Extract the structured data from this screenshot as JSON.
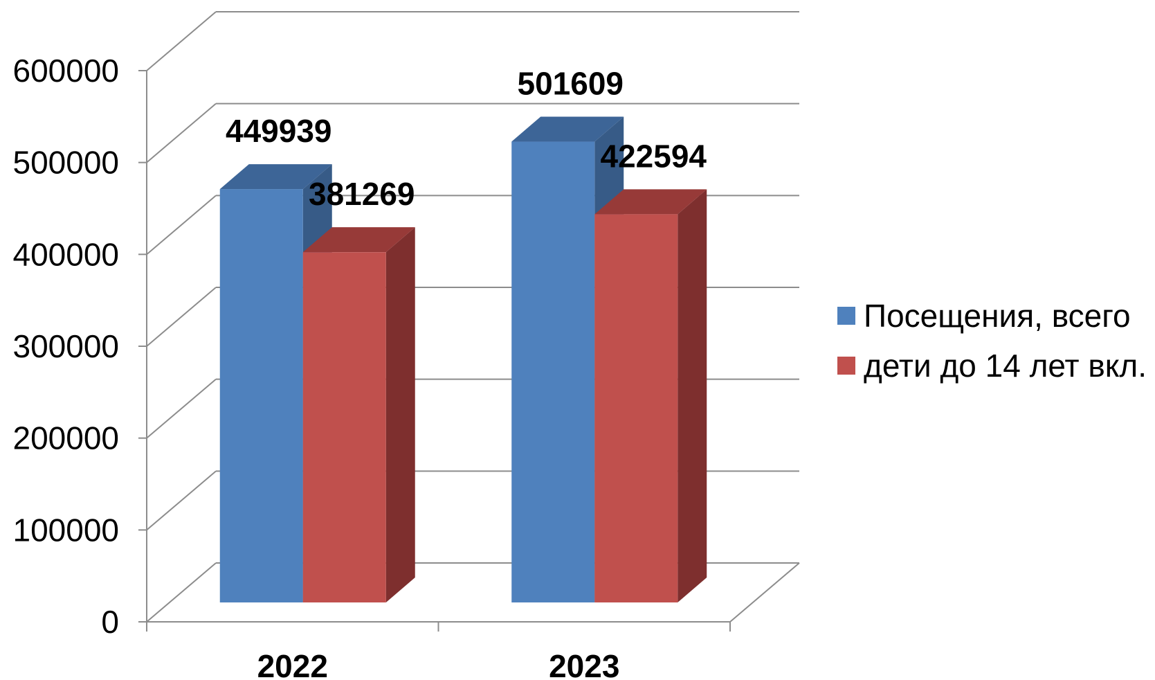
{
  "chart_data": {
    "type": "bar",
    "categories": [
      "2022",
      "2023"
    ],
    "series": [
      {
        "name": "Посещения, всего",
        "values": [
          449939,
          501609
        ],
        "color": "#4F81BD",
        "side_color": "#375B87",
        "top_color": "#3D6597"
      },
      {
        "name": "дети до 14 лет вкл.",
        "values": [
          381269,
          422594
        ],
        "color": "#C0504D",
        "side_color": "#7E2F2E",
        "top_color": "#973A38"
      }
    ],
    "title": "",
    "xlabel": "",
    "ylabel": "",
    "ylim": [
      0,
      600000
    ],
    "yticks": [
      "0",
      "100000",
      "200000",
      "300000",
      "400000",
      "500000",
      "600000"
    ],
    "grid": true,
    "style": "3d-clustered-column",
    "legend_position": "right"
  }
}
